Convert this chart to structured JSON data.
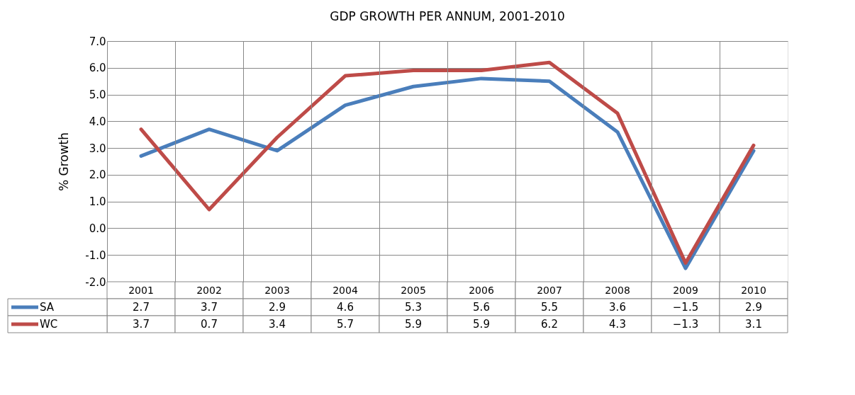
{
  "chart_data": {
    "type": "line",
    "title": "GDP GROWTH PER ANNUM, 2001-2010",
    "ylabel": "% Growth",
    "categories": [
      "2001",
      "2002",
      "2003",
      "2004",
      "2005",
      "2006",
      "2007",
      "2008",
      "2009",
      "2010"
    ],
    "series": [
      {
        "name": "SA",
        "color": "#4a7ebb",
        "values": [
          2.7,
          3.7,
          2.9,
          4.6,
          5.3,
          5.6,
          5.5,
          3.6,
          -1.5,
          2.9
        ]
      },
      {
        "name": "WC",
        "color": "#be4b48",
        "values": [
          3.7,
          0.7,
          3.4,
          5.7,
          5.9,
          5.9,
          6.2,
          4.3,
          -1.3,
          3.1
        ]
      }
    ],
    "ylim": [
      -2,
      7
    ],
    "yticks": [
      {
        "value": -2,
        "label": "-2.0"
      },
      {
        "value": -1,
        "label": "-1.0"
      },
      {
        "value": 0,
        "label": "0.0"
      },
      {
        "value": 1,
        "label": "1.0"
      },
      {
        "value": 2,
        "label": "2.0"
      },
      {
        "value": 3,
        "label": "3.0"
      },
      {
        "value": 4,
        "label": "4.0"
      },
      {
        "value": 5,
        "label": "5.0"
      },
      {
        "value": 6,
        "label": "6.0"
      },
      {
        "value": 7,
        "label": "7.0"
      }
    ],
    "grid": true,
    "legend": "bottom",
    "data_labels": true,
    "line_style": "solid",
    "marker": "none"
  }
}
